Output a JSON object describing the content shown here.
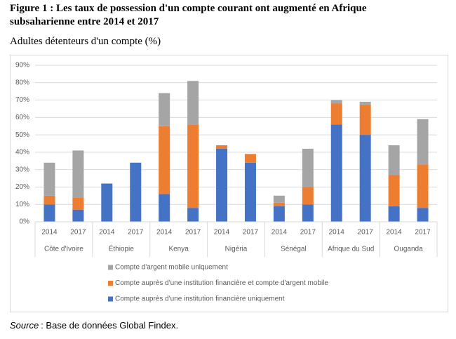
{
  "title": "Figure 1 : Les taux de possession d'un compte courant ont augmenté en Afrique subsaharienne entre 2014 et 2017",
  "subtitle": "Adultes détenteurs d'un compte (%)",
  "source": {
    "label": "Source",
    "text": ": Base de données Global Findex."
  },
  "chart_data": {
    "type": "stacked_bar",
    "categories": [
      "2014",
      "2017",
      "2014",
      "2017",
      "2014",
      "2017",
      "2014",
      "2017",
      "2014",
      "2017",
      "2014",
      "2017",
      "2014",
      "2017"
    ],
    "groups": [
      "Côte d'Ivoire",
      "Éthiopie",
      "Kenya",
      "Nigéria",
      "Sénégal",
      "Afrique du Sud",
      "Ouganda"
    ],
    "series": [
      {
        "name": "Compte auprès d'une institution financière uniquement",
        "color": "#4472c4",
        "values": [
          10,
          7,
          22,
          34,
          16,
          8,
          42,
          34,
          9,
          10,
          56,
          50,
          9,
          8
        ]
      },
      {
        "name": "Compte auprès d'une institution financière et compte d'argent mobile",
        "color": "#ed7d31",
        "values": [
          5,
          7,
          0,
          0,
          39,
          48,
          2,
          5,
          2,
          10,
          12,
          17,
          18,
          25
        ]
      },
      {
        "name": "Compte d'argent mobile uniquement",
        "color": "#a5a5a5",
        "values": [
          19,
          27,
          0,
          0,
          19,
          25,
          0,
          0,
          4,
          22,
          2,
          2,
          17,
          26
        ]
      }
    ],
    "ylim": [
      0,
      90
    ],
    "yticks": [
      {
        "value": 0,
        "label": "0%"
      },
      {
        "value": 10,
        "label": "10%"
      },
      {
        "value": 20,
        "label": "20%"
      },
      {
        "value": 30,
        "label": "30%"
      },
      {
        "value": 40,
        "label": "40%"
      },
      {
        "value": 50,
        "label": "50%"
      },
      {
        "value": 60,
        "label": "60%"
      },
      {
        "value": 70,
        "label": "70%"
      },
      {
        "value": 80,
        "label": "80%"
      },
      {
        "value": 90,
        "label": "90%"
      }
    ],
    "grid": true
  }
}
